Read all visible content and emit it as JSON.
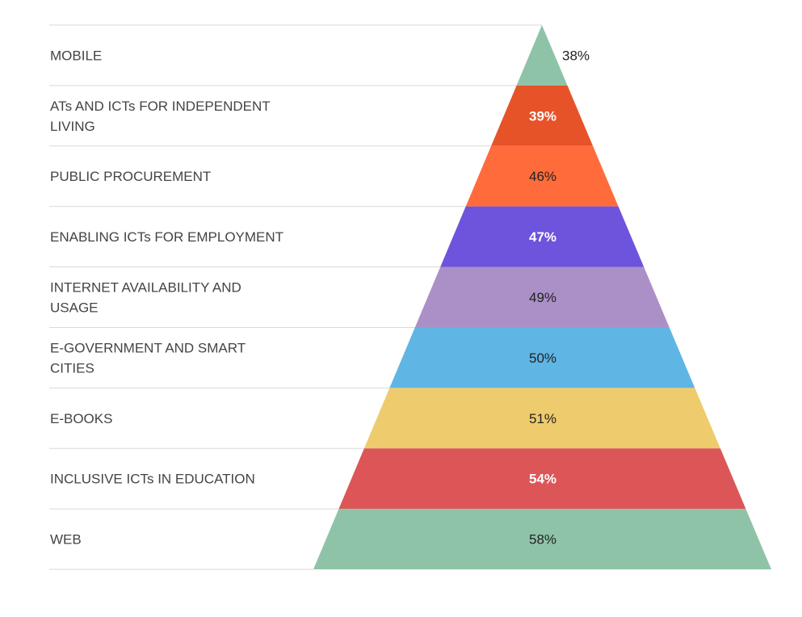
{
  "chart_data": {
    "type": "pyramid",
    "title": "",
    "categories": [
      "MOBILE",
      "ATs AND ICTs FOR INDEPENDENT LIVING",
      "PUBLIC PROCUREMENT",
      "ENABLING ICTs FOR EMPLOYMENT",
      "INTERNET AVAILABILITY AND USAGE",
      "E-GOVERNMENT AND SMART CITIES",
      "E-BOOKS",
      "INCLUSIVE ICTs IN EDUCATION",
      "WEB"
    ],
    "values": [
      38,
      39,
      46,
      47,
      49,
      50,
      51,
      54,
      58
    ],
    "value_labels": [
      "38%",
      "39%",
      "46%",
      "47%",
      "49%",
      "50%",
      "51%",
      "54%",
      "58%"
    ],
    "colors": [
      "#8fc3a8",
      "#e65328",
      "#ff6b3b",
      "#6e53dc",
      "#ab90c7",
      "#5fb5e4",
      "#eecb6d",
      "#dc5657",
      "#8fc3a8"
    ],
    "label_text_colors": [
      "#222222",
      "#ffffff",
      "#222222",
      "#ffffff",
      "#222222",
      "#222222",
      "#222222",
      "#ffffff",
      "#222222"
    ],
    "grid": true,
    "legend": "none"
  }
}
